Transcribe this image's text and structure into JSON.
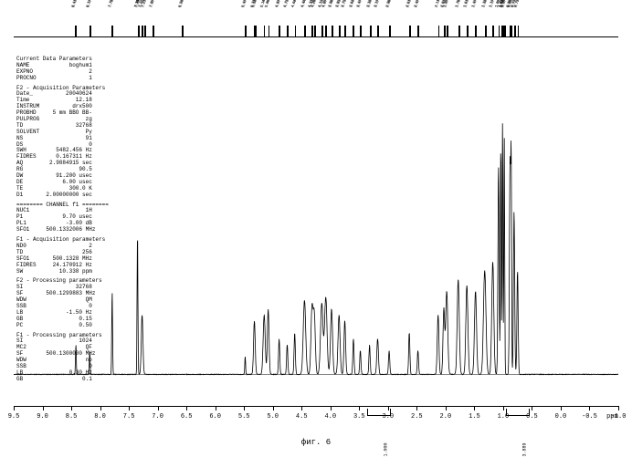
{
  "type": "nmr-spectrum",
  "caption": "фиг. 6",
  "colors": {
    "bg": "#ffffff",
    "fg": "#000000"
  },
  "ruler": {
    "min": 0.5,
    "max": 8.5,
    "labels": [
      "8.432",
      "8.418",
      "8.185",
      "8.171",
      "7.798",
      "7.782",
      "7.350",
      "7.340",
      "7.337",
      "7.332",
      "7.278",
      "7.264",
      "7.232",
      "7.212",
      "7.085",
      "7.072",
      "6.580",
      "6.567",
      "5.485",
      "5.471",
      "5.332",
      "5.318",
      "5.303",
      "5.162",
      "5.148",
      "5.082",
      "5.068",
      "4.898",
      "4.878",
      "4.752",
      "4.735",
      "4.621",
      "4.608",
      "4.462",
      "4.448",
      "4.332",
      "4.318",
      "4.282",
      "4.268",
      "4.152",
      "4.138",
      "4.085",
      "4.072",
      "3.982",
      "3.968",
      "3.851",
      "3.837",
      "3.752",
      "3.738",
      "3.620",
      "3.603",
      "3.485",
      "3.471",
      "3.320",
      "3.306",
      "3.185",
      "3.171",
      "2.980",
      "2.966",
      "2.632",
      "2.618",
      "2.485",
      "2.471",
      "2.132",
      "2.118",
      "2.035",
      "2.021",
      "1.985",
      "1.971",
      "1.780",
      "1.766",
      "1.632",
      "1.618",
      "1.485",
      "1.471",
      "1.320",
      "1.306",
      "1.185",
      "1.171",
      "1.085",
      "1.071",
      "1.035",
      "1.021",
      "1.010",
      "1.005",
      "0.985",
      "0.971",
      "0.880",
      "0.866",
      "0.852",
      "0.812",
      "0.798",
      "0.752",
      "0.738"
    ]
  },
  "params": {
    "sections": [
      {
        "title": "Current Data Parameters",
        "rows": [
          [
            "NAME",
            "boghum1"
          ],
          [
            "EXPNO",
            "2"
          ],
          [
            "PROCNO",
            "1"
          ]
        ]
      },
      {
        "title": "F2 - Acquisition Parameters",
        "rows": [
          [
            "Date_",
            "20040624"
          ],
          [
            "Time",
            "12.18"
          ],
          [
            "INSTRUM",
            "drx500"
          ],
          [
            "PROBHD",
            "5 mm BBO BB-"
          ],
          [
            "PULPROG",
            "zg"
          ],
          [
            "TD",
            "32768"
          ],
          [
            "SOLVENT",
            "Py"
          ],
          [
            "NS",
            "91"
          ],
          [
            "DS",
            "0"
          ],
          [
            "SWH",
            "5482.456 Hz"
          ],
          [
            "FIDRES",
            "0.167311 Hz"
          ],
          [
            "AQ",
            "2.9884915 sec"
          ],
          [
            "RG",
            "90.5"
          ],
          [
            "DW",
            "91.200 usec"
          ],
          [
            "DE",
            "6.00 usec"
          ],
          [
            "TE",
            "300.0 K"
          ],
          [
            "D1",
            "2.00000000 sec"
          ]
        ]
      },
      {
        "title": "======== CHANNEL f1 ========",
        "rows": [
          [
            "NUC1",
            "1H"
          ],
          [
            "P1",
            "9.70 usec"
          ],
          [
            "PL1",
            "-3.00 dB"
          ],
          [
            "SFO1",
            "500.1332006 MHz"
          ]
        ]
      },
      {
        "title": "F1 - Acquisition parameters",
        "rows": [
          [
            "ND0",
            "2"
          ],
          [
            "TD",
            "256"
          ],
          [
            "SFO1",
            "500.1328 MHz"
          ],
          [
            "FIDRES",
            "24.170912 Hz"
          ],
          [
            "SW",
            "10.338 ppm"
          ]
        ]
      },
      {
        "title": "F2 - Processing parameters",
        "rows": [
          [
            "SI",
            "32768"
          ],
          [
            "SF",
            "500.1299883 MHz"
          ],
          [
            "WDW",
            "QM"
          ],
          [
            "SSB",
            "0"
          ],
          [
            "LB",
            "-1.50 Hz"
          ],
          [
            "GB",
            "0.15"
          ],
          [
            "PC",
            "0.50"
          ]
        ]
      },
      {
        "title": "F1 - Processing parameters",
        "rows": [
          [
            "SI",
            "1024"
          ],
          [
            "MC2",
            "QF"
          ],
          [
            "SF",
            "500.1300000 MHz"
          ],
          [
            "WDW",
            "no"
          ],
          [
            "SSB",
            "0"
          ],
          [
            "LB",
            "0.30 Hz"
          ],
          [
            "GB",
            "0.1"
          ]
        ]
      }
    ]
  },
  "xaxis": {
    "unit": "ppm",
    "min": -1.0,
    "max": 9.5,
    "ticks": [
      9.5,
      9.0,
      8.5,
      8.0,
      7.5,
      7.0,
      6.5,
      6.0,
      5.5,
      5.0,
      4.5,
      4.0,
      3.5,
      3.0,
      2.5,
      2.0,
      1.5,
      1.0,
      0.5,
      0.0,
      -0.5,
      -1.0
    ]
  },
  "integrals": [
    {
      "ppm_lo": 3.0,
      "ppm_hi": 3.4,
      "value": "1.000"
    },
    {
      "ppm_lo": 0.7,
      "ppm_hi": 1.1,
      "value": "3.889"
    }
  ],
  "spectrum": {
    "baseline_y": 0.92,
    "noise": 0.002,
    "peaks": [
      {
        "ppm": 8.42,
        "h": 0.1,
        "w": 0.02
      },
      {
        "ppm": 8.18,
        "h": 0.08,
        "w": 0.02
      },
      {
        "ppm": 7.79,
        "h": 0.28,
        "w": 0.02
      },
      {
        "ppm": 7.35,
        "h": 0.48,
        "w": 0.02
      },
      {
        "ppm": 7.27,
        "h": 0.2,
        "w": 0.04
      },
      {
        "ppm": 5.48,
        "h": 0.06,
        "w": 0.02
      },
      {
        "ppm": 5.32,
        "h": 0.18,
        "w": 0.04
      },
      {
        "ppm": 5.15,
        "h": 0.2,
        "w": 0.05
      },
      {
        "ppm": 5.08,
        "h": 0.22,
        "w": 0.04
      },
      {
        "ppm": 4.89,
        "h": 0.12,
        "w": 0.03
      },
      {
        "ppm": 4.75,
        "h": 0.1,
        "w": 0.03
      },
      {
        "ppm": 4.62,
        "h": 0.14,
        "w": 0.03
      },
      {
        "ppm": 4.45,
        "h": 0.25,
        "w": 0.06
      },
      {
        "ppm": 4.32,
        "h": 0.22,
        "w": 0.05
      },
      {
        "ppm": 4.28,
        "h": 0.2,
        "w": 0.05
      },
      {
        "ppm": 4.15,
        "h": 0.24,
        "w": 0.06
      },
      {
        "ppm": 4.08,
        "h": 0.26,
        "w": 0.06
      },
      {
        "ppm": 3.98,
        "h": 0.22,
        "w": 0.05
      },
      {
        "ppm": 3.85,
        "h": 0.2,
        "w": 0.05
      },
      {
        "ppm": 3.75,
        "h": 0.18,
        "w": 0.04
      },
      {
        "ppm": 3.6,
        "h": 0.12,
        "w": 0.03
      },
      {
        "ppm": 3.48,
        "h": 0.08,
        "w": 0.03
      },
      {
        "ppm": 3.32,
        "h": 0.1,
        "w": 0.03
      },
      {
        "ppm": 3.18,
        "h": 0.12,
        "w": 0.04
      },
      {
        "ppm": 2.98,
        "h": 0.08,
        "w": 0.03
      },
      {
        "ppm": 2.63,
        "h": 0.14,
        "w": 0.03
      },
      {
        "ppm": 2.48,
        "h": 0.08,
        "w": 0.03
      },
      {
        "ppm": 2.13,
        "h": 0.2,
        "w": 0.04
      },
      {
        "ppm": 2.03,
        "h": 0.22,
        "w": 0.04
      },
      {
        "ppm": 1.98,
        "h": 0.28,
        "w": 0.05
      },
      {
        "ppm": 1.78,
        "h": 0.32,
        "w": 0.05
      },
      {
        "ppm": 1.63,
        "h": 0.3,
        "w": 0.05
      },
      {
        "ppm": 1.48,
        "h": 0.28,
        "w": 0.05
      },
      {
        "ppm": 1.32,
        "h": 0.35,
        "w": 0.06
      },
      {
        "ppm": 1.18,
        "h": 0.38,
        "w": 0.05
      },
      {
        "ppm": 1.08,
        "h": 0.7,
        "w": 0.03
      },
      {
        "ppm": 1.04,
        "h": 0.78,
        "w": 0.02
      },
      {
        "ppm": 1.01,
        "h": 0.85,
        "w": 0.02
      },
      {
        "ppm": 0.98,
        "h": 0.8,
        "w": 0.02
      },
      {
        "ppm": 0.88,
        "h": 0.72,
        "w": 0.03
      },
      {
        "ppm": 0.86,
        "h": 0.65,
        "w": 0.02
      },
      {
        "ppm": 0.81,
        "h": 0.55,
        "w": 0.03
      },
      {
        "ppm": 0.75,
        "h": 0.35,
        "w": 0.03
      }
    ]
  }
}
